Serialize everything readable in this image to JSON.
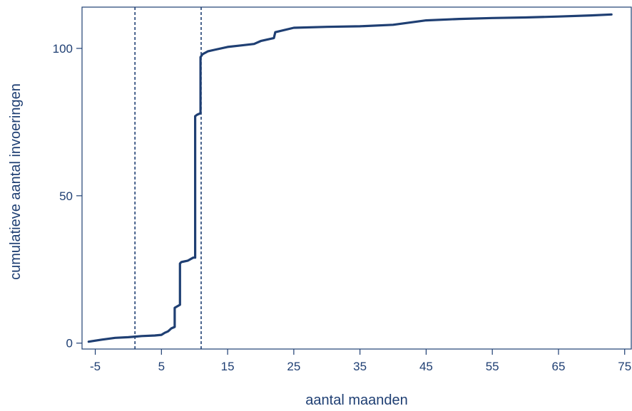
{
  "colors": {
    "series": "#1f3f73",
    "axis": "#1f3f73",
    "text": "#1f3f73",
    "background": "#ffffff"
  },
  "chart_data": {
    "type": "line",
    "title": "",
    "xlabel": "aantal maanden",
    "ylabel": "cumulatieve aantal invoeringen",
    "xlim": [
      -7,
      76
    ],
    "ylim": [
      -2,
      114
    ],
    "xticks": [
      "-5",
      "5",
      "15",
      "25",
      "35",
      "45",
      "55",
      "65",
      "75"
    ],
    "yticks": [
      "0",
      "50",
      "100"
    ],
    "grid": false,
    "legend": "none",
    "reference_lines": [
      {
        "orientation": "vertical",
        "x": 1,
        "style": "dashed"
      },
      {
        "orientation": "vertical",
        "x": 11,
        "style": "dashed"
      }
    ],
    "series": [
      {
        "x": [
          -6,
          -4,
          -2,
          0,
          1,
          2,
          4,
          5,
          5.5,
          6,
          6.5,
          7,
          7,
          7.4,
          7.8,
          7.8,
          8,
          9,
          9.8,
          10.1,
          10.1,
          10.4,
          10.9,
          10.9,
          11.2,
          11.6,
          12,
          13,
          15,
          17,
          19,
          20,
          22,
          22.2,
          25,
          30,
          35,
          40,
          45,
          50,
          55,
          60,
          65,
          70,
          73
        ],
        "y": [
          0.5,
          1.2,
          1.8,
          2,
          2.2,
          2.4,
          2.6,
          2.8,
          3.5,
          4,
          5,
          5.5,
          12,
          12.5,
          13,
          27,
          27.5,
          28,
          29,
          29,
          77,
          77.5,
          78,
          97,
          98,
          98.5,
          99,
          99.5,
          100.5,
          101,
          101.5,
          102.5,
          103.5,
          105.5,
          107,
          107.3,
          107.5,
          108,
          109.5,
          110,
          110.3,
          110.5,
          110.8,
          111.2,
          111.5
        ]
      }
    ]
  }
}
